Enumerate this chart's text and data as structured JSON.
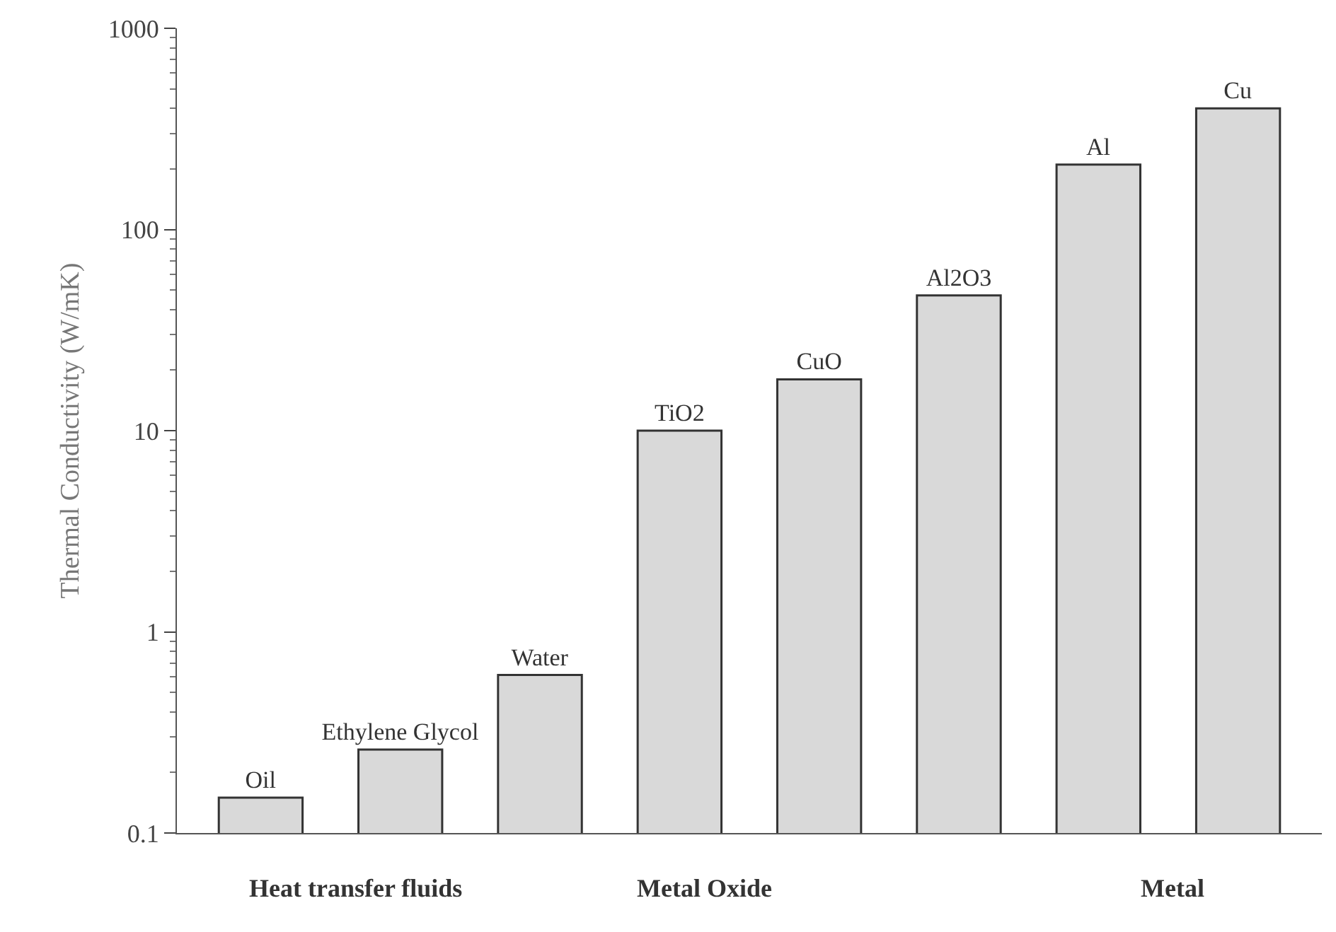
{
  "chart_data": {
    "type": "bar",
    "ylabel": "Thermal Conductivity (W/mK)",
    "categories": [
      "Oil",
      "Ethylene Glycol",
      "Water",
      "TiO2",
      "CuO",
      "Al2O3",
      "Al",
      "Cu"
    ],
    "values": [
      0.15,
      0.26,
      0.61,
      10,
      18,
      47,
      210,
      400
    ],
    "color": "#d9d9d9",
    "log": "y",
    "ylim": [
      0.1,
      1000
    ],
    "yticks": [
      0.1,
      1,
      10,
      100,
      1000
    ],
    "tick_labels": "y",
    "annotations": [
      "Heat transfer fluids",
      "Metal Oxide",
      "Metal"
    ]
  }
}
